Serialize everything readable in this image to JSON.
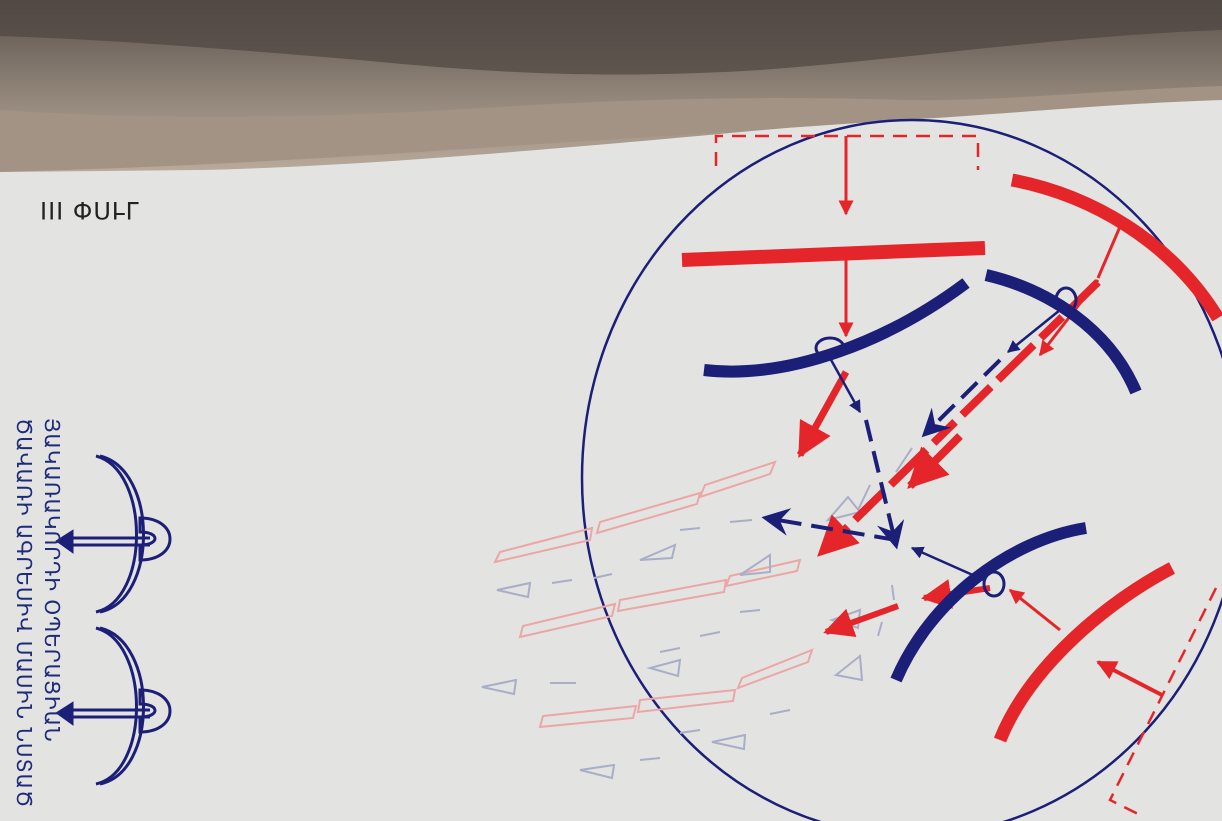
{
  "phase_label": "III ՓՈՒԼ",
  "legend": {
    "line1": "ՅԱԿԱՌԱԿՈՐԴԻ ՕՊԵՐԱՑԻԱՆ",
    "line2": "ԾԱՎԱՌԻ ԱԳՐԵՍԻՎ ՄԱՍԻՆ ՆՍՏԱԾ"
  },
  "colors": {
    "red": "#e4262a",
    "blue": "#1c1f78",
    "faded_red": "#eba6a6",
    "faded_blue": "#a9aec8",
    "ground_dark": "#7e7369",
    "ground_light": "#b3a597",
    "background": "#e3e3e1"
  },
  "icons": [
    "anchor-icon",
    "anchor-icon"
  ]
}
